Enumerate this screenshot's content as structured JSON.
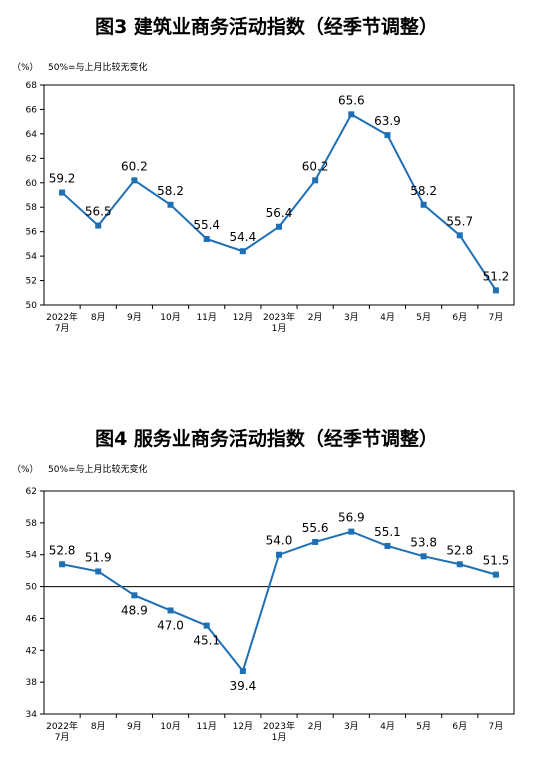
{
  "chart_data": [
    {
      "type": "line",
      "title": "图3  建筑业商务活动指数（经季节调整）",
      "unit_label": "（%）",
      "note": "50%=与上月比较无变化",
      "categories": [
        [
          "2022年",
          "7月"
        ],
        [
          "8月"
        ],
        [
          "9月"
        ],
        [
          "10月"
        ],
        [
          "11月"
        ],
        [
          "12月"
        ],
        [
          "2023年",
          "1月"
        ],
        [
          "2月"
        ],
        [
          "3月"
        ],
        [
          "4月"
        ],
        [
          "5月"
        ],
        [
          "6月"
        ],
        [
          "7月"
        ]
      ],
      "values": [
        59.2,
        56.5,
        60.2,
        58.2,
        55.4,
        54.4,
        56.4,
        60.2,
        65.6,
        63.9,
        58.2,
        55.7,
        51.2
      ],
      "value_labels": [
        "59.2",
        "56.5",
        "60.2",
        "58.2",
        "55.4",
        "54.4",
        "56.4",
        "60.2",
        "65.6",
        "63.9",
        "58.2",
        "55.7",
        "51.2"
      ],
      "yticks": [
        50,
        52,
        54,
        56,
        58,
        60,
        62,
        64,
        66,
        68
      ],
      "ylim": [
        50,
        68
      ],
      "line_color": "#1f6fb5",
      "reference_line": null
    },
    {
      "type": "line",
      "title": "图4  服务业商务活动指数（经季节调整）",
      "unit_label": "（%）",
      "note": "50%=与上月比较无变化",
      "categories": [
        [
          "2022年",
          "7月"
        ],
        [
          "8月"
        ],
        [
          "9月"
        ],
        [
          "10月"
        ],
        [
          "11月"
        ],
        [
          "12月"
        ],
        [
          "2023年",
          "1月"
        ],
        [
          "2月"
        ],
        [
          "3月"
        ],
        [
          "4月"
        ],
        [
          "5月"
        ],
        [
          "6月"
        ],
        [
          "7月"
        ]
      ],
      "values": [
        52.8,
        51.9,
        48.9,
        47.0,
        45.1,
        39.4,
        54.0,
        55.6,
        56.9,
        55.1,
        53.8,
        52.8,
        51.5
      ],
      "value_labels": [
        "52.8",
        "51.9",
        "48.9",
        "47.0",
        "45.1",
        "39.4",
        "54.0",
        "55.6",
        "56.9",
        "55.1",
        "53.8",
        "52.8",
        "51.5"
      ],
      "yticks": [
        34,
        38,
        42,
        46,
        50,
        54,
        58,
        62
      ],
      "ylim": [
        34,
        62
      ],
      "line_color": "#1f6fb5",
      "reference_line": 50
    }
  ]
}
